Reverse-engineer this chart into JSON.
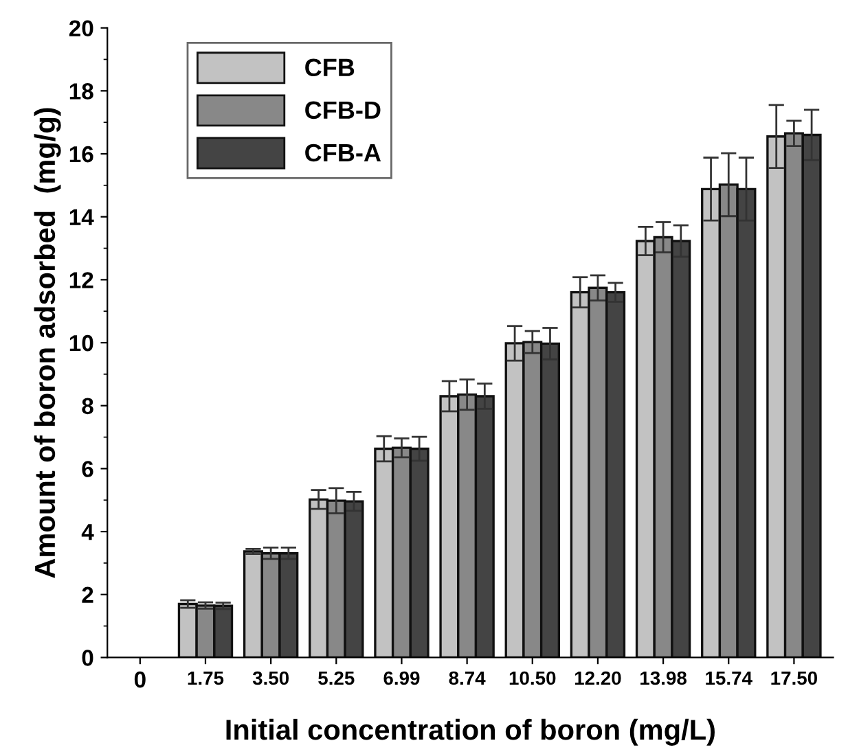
{
  "chart_data": {
    "type": "bar",
    "xlabel": "Initial concentration of boron (mg/L)",
    "ylabel": "Amount of boron adsorbed  (mg/g)",
    "categories": [
      "0",
      "1.75",
      "3.50",
      "5.25",
      "6.99",
      "8.74",
      "10.50",
      "12.20",
      "13.98",
      "15.74",
      "17.50"
    ],
    "series": [
      {
        "name": "CFB",
        "color": "#c2c2c2",
        "values": [
          null,
          1.7,
          3.37,
          5.02,
          6.63,
          8.3,
          9.98,
          11.6,
          13.23,
          14.88,
          16.55
        ],
        "errors": [
          null,
          0.12,
          0.08,
          0.3,
          0.4,
          0.48,
          0.55,
          0.48,
          0.45,
          1.0,
          1.0
        ]
      },
      {
        "name": "CFB-D",
        "color": "#888888",
        "values": [
          null,
          1.65,
          3.31,
          4.98,
          6.66,
          8.35,
          10.02,
          11.74,
          13.35,
          15.02,
          16.65
        ],
        "errors": [
          null,
          0.1,
          0.18,
          0.4,
          0.3,
          0.48,
          0.35,
          0.4,
          0.48,
          1.0,
          0.4
        ]
      },
      {
        "name": "CFB-A",
        "color": "#444444",
        "values": [
          null,
          1.64,
          3.31,
          4.96,
          6.63,
          8.3,
          9.97,
          11.6,
          13.23,
          14.88,
          16.6
        ],
        "errors": [
          null,
          0.1,
          0.18,
          0.3,
          0.38,
          0.4,
          0.5,
          0.3,
          0.5,
          1.0,
          0.8
        ]
      }
    ],
    "ylim": [
      0,
      20
    ],
    "yticks": [
      0,
      2,
      4,
      6,
      8,
      10,
      12,
      14,
      16,
      18,
      20
    ],
    "grid": false,
    "legend": "top left"
  }
}
